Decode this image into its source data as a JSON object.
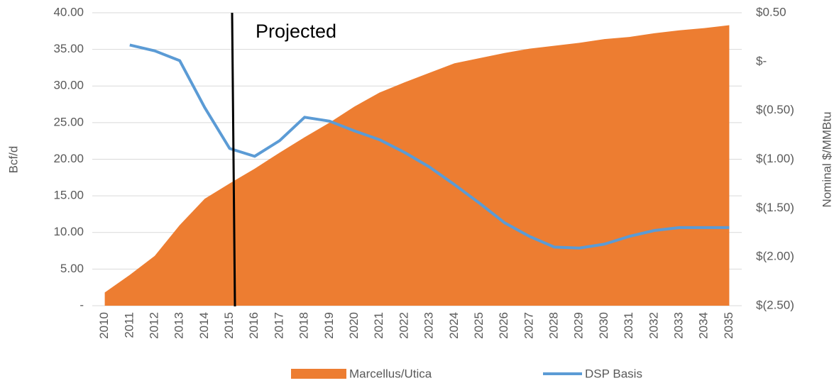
{
  "chart_data": {
    "type": "area-line",
    "categories": [
      "2010",
      "2011",
      "2012",
      "2013",
      "2014",
      "2015",
      "2016",
      "2017",
      "2018",
      "2019",
      "2020",
      "2021",
      "2022",
      "2023",
      "2024",
      "2025",
      "2026",
      "2027",
      "2028",
      "2029",
      "2030",
      "2031",
      "2032",
      "2033",
      "2034",
      "2035"
    ],
    "series": [
      {
        "name": "Marcellus/Utica",
        "color": "#ED7D31",
        "type": "area",
        "values": [
          1.8,
          4.2,
          6.8,
          11,
          14.6,
          16.7,
          18.7,
          20.9,
          23,
          25,
          27.2,
          29.1,
          30.5,
          31.8,
          33.1,
          33.8,
          34.5,
          35.1,
          35.5,
          35.9,
          36.4,
          36.7,
          37.2,
          37.6,
          37.9,
          38.3
        ]
      },
      {
        "name": "DSP Basis",
        "color": "#5B9BD5",
        "type": "line",
        "axis": "y2",
        "values": [
          null,
          0.17,
          0.11,
          0.01,
          -0.47,
          -0.89,
          -0.97,
          -0.81,
          -0.57,
          -0.61,
          -0.71,
          -0.8,
          -0.93,
          -1.08,
          -1.26,
          -1.45,
          -1.65,
          -1.79,
          -1.9,
          -1.91,
          -1.87,
          -1.79,
          -1.73,
          -1.7,
          -1.7,
          -1.7
        ]
      }
    ],
    "ylabel": "Bcf/d",
    "y2label": "Nominal $/MMBtu",
    "annotation": "Projected",
    "ylim": [
      0,
      40
    ],
    "yticks": [
      {
        "value": 0,
        "label": "-"
      },
      {
        "value": 5,
        "label": "5.00"
      },
      {
        "value": 10,
        "label": "10.00"
      },
      {
        "value": 15,
        "label": "15.00"
      },
      {
        "value": 20,
        "label": "20.00"
      },
      {
        "value": 25,
        "label": "25.00"
      },
      {
        "value": 30,
        "label": "30.00"
      },
      {
        "value": 35,
        "label": "35.00"
      },
      {
        "value": 40,
        "label": "40.00"
      }
    ],
    "y2lim": [
      -2.5,
      0.5
    ],
    "y2ticks": [
      {
        "value": -2.5,
        "label": "$(2.50)"
      },
      {
        "value": -2,
        "label": "$(2.00)"
      },
      {
        "value": -1.5,
        "label": "$(1.50)"
      },
      {
        "value": -1,
        "label": "$(1.00)"
      },
      {
        "value": -0.5,
        "label": "$(0.50)"
      },
      {
        "value": 0,
        "label": "$-"
      },
      {
        "value": 0.5,
        "label": "$0.50"
      }
    ],
    "grid": true,
    "legend": "bottom"
  }
}
